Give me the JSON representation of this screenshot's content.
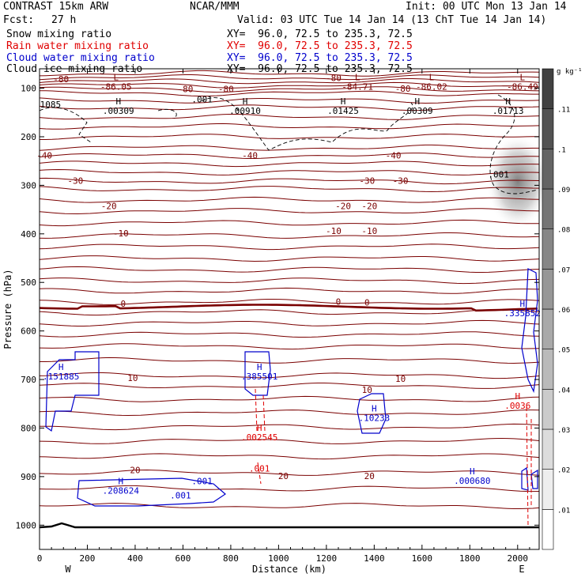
{
  "header": {
    "model": "CONTRAST 15km ARW",
    "org": "NCAR/MMM",
    "init": "Init: 00 UTC Mon 13 Jan 14",
    "fcst_label": "Fcst:",
    "fcst_value": "27 h",
    "valid": "Valid: 03 UTC Tue 14 Jan 14 (13 ChT Tue 14 Jan 14)"
  },
  "fields": [
    {
      "name": "Snow mixing ratio",
      "xy": "XY=  96.0, 72.5 to 235.3, 72.5",
      "color": "#000000"
    },
    {
      "name": "Rain water mixing ratio",
      "xy": "XY=  96.0, 72.5 to 235.3, 72.5",
      "color": "#e00000"
    },
    {
      "name": "Cloud water mixing ratio",
      "xy": "XY=  96.0, 72.5 to 235.3, 72.5",
      "color": "#0000cc"
    },
    {
      "name": "Cloud ice mixing ratio",
      "xy": "XY=  96.0, 72.5 to 235.3, 72.5",
      "color": "#000000"
    }
  ],
  "colors": {
    "temperature": "#7a0000",
    "cloud_water": "#0000cc",
    "rain_water": "#e00000",
    "snow": "#000000"
  },
  "chart_data": {
    "type": "heatmap",
    "xlabel": "Distance (km)",
    "ylabel": "Pressure (hPa)",
    "xlim": [
      0,
      2090
    ],
    "ylim": [
      1050,
      60
    ],
    "x_ticks": [
      "0",
      "200",
      "400",
      "600",
      "800",
      "1000",
      "1200",
      "1400",
      "1600",
      "1800",
      "2000"
    ],
    "x_tick_values": [
      0,
      200,
      400,
      600,
      800,
      1000,
      1200,
      1400,
      1600,
      1800,
      2000
    ],
    "y_ticks": [
      "100",
      "200",
      "300",
      "400",
      "500",
      "600",
      "700",
      "800",
      "900",
      "1000"
    ],
    "y_tick_values": [
      100,
      200,
      300,
      400,
      500,
      600,
      700,
      800,
      900,
      1000
    ],
    "endpoint_labels": {
      "left": "W",
      "right": "E"
    },
    "colorbar": {
      "unit": "g kg⁻¹",
      "levels": [
        "0",
        "0.01",
        "0.02",
        "0.03",
        "0.04",
        "0.05",
        "0.06",
        "0.07",
        "0.08",
        "0.09",
        "0.1",
        "0.11",
        "0.12"
      ],
      "labels": [
        ".01",
        ".02",
        ".03",
        ".04",
        ".05",
        ".06",
        ".07",
        ".08",
        ".09",
        ".1",
        ".11"
      ],
      "label_values": [
        0.01,
        0.02,
        0.03,
        0.04,
        0.05,
        0.06,
        0.07,
        0.08,
        0.09,
        0.1,
        0.11
      ]
    },
    "temperature_labels": [
      {
        "text": "-80",
        "x": 90,
        "p": 88
      },
      {
        "text": "-80",
        "x": 610,
        "p": 108
      },
      {
        "text": "-80",
        "x": 780,
        "p": 108
      },
      {
        "text": "-80",
        "x": 1230,
        "p": 85
      },
      {
        "text": "-80",
        "x": 1520,
        "p": 107
      },
      {
        "text": "-40",
        "x": 20,
        "p": 245
      },
      {
        "text": "-40",
        "x": 880,
        "p": 245
      },
      {
        "text": "-40",
        "x": 1480,
        "p": 245
      },
      {
        "text": "-30",
        "x": 150,
        "p": 297
      },
      {
        "text": "-30",
        "x": 1370,
        "p": 297
      },
      {
        "text": "-30",
        "x": 1510,
        "p": 297
      },
      {
        "text": "-20",
        "x": 290,
        "p": 349
      },
      {
        "text": "-20",
        "x": 1270,
        "p": 349
      },
      {
        "text": "-20",
        "x": 1380,
        "p": 349
      },
      {
        "text": "-10",
        "x": 340,
        "p": 405
      },
      {
        "text": "-10",
        "x": 1230,
        "p": 400
      },
      {
        "text": "-10",
        "x": 1380,
        "p": 400
      },
      {
        "text": "0",
        "x": 350,
        "p": 550
      },
      {
        "text": "0",
        "x": 1250,
        "p": 546
      },
      {
        "text": "0",
        "x": 1370,
        "p": 548
      },
      {
        "text": "10",
        "x": 390,
        "p": 703
      },
      {
        "text": "10",
        "x": 1370,
        "p": 728
      },
      {
        "text": "10",
        "x": 1510,
        "p": 705
      },
      {
        "text": "20",
        "x": 400,
        "p": 893
      },
      {
        "text": "20",
        "x": 1020,
        "p": 905
      },
      {
        "text": "20",
        "x": 1380,
        "p": 905
      }
    ],
    "extrema": [
      {
        "kind": "L",
        "value": "-86.05",
        "x": 320,
        "p": 103,
        "field": "temperature"
      },
      {
        "kind": "L",
        "value": "-84.71",
        "x": 1330,
        "p": 103,
        "field": "temperature"
      },
      {
        "kind": "L",
        "value": "-86.02",
        "x": 1640,
        "p": 103,
        "field": "temperature"
      },
      {
        "kind": "L",
        "value": "-86.49",
        "x": 2020,
        "p": 103,
        "field": "temperature"
      },
      {
        "kind": "H",
        "value": ".00309",
        "x": 330,
        "p": 153,
        "field": "snow"
      },
      {
        "kind": "H",
        "value": ".00910",
        "x": 860,
        "p": 153,
        "field": "snow"
      },
      {
        "kind": "H",
        "value": ".01425",
        "x": 1270,
        "p": 153,
        "field": "snow"
      },
      {
        "kind": "H",
        "value": ".00309",
        "x": 1580,
        "p": 153,
        "field": "snow"
      },
      {
        "kind": "H",
        "value": ".01713",
        "x": 1960,
        "p": 153,
        "field": "snow"
      },
      {
        "kind": "",
        "value": ".001",
        "x": 680,
        "p": 129,
        "field": "snow"
      },
      {
        "kind": "",
        "value": ".001",
        "x": 1920,
        "p": 284,
        "field": "snow"
      },
      {
        "kind": "H",
        "value": ".151885",
        "x": 90,
        "p": 700,
        "field": "cloud_water"
      },
      {
        "kind": "H",
        "value": ".385501",
        "x": 920,
        "p": 700,
        "field": "cloud_water"
      },
      {
        "kind": "H",
        "value": ".10233",
        "x": 1400,
        "p": 785,
        "field": "cloud_water"
      },
      {
        "kind": "H",
        "value": ".335852",
        "x": 2020,
        "p": 570,
        "field": "cloud_water"
      },
      {
        "kind": "H",
        "value": ".000680",
        "x": 1810,
        "p": 915,
        "field": "cloud_water"
      },
      {
        "kind": "H",
        "value": ".208624",
        "x": 340,
        "p": 935,
        "field": "cloud_water"
      },
      {
        "kind": "",
        "value": ".001",
        "x": 680,
        "p": 916,
        "field": "cloud_water"
      },
      {
        "kind": "",
        "value": ".001",
        "x": 590,
        "p": 945,
        "field": "cloud_water"
      },
      {
        "kind": "H",
        "value": ".002545",
        "x": 920,
        "p": 825,
        "field": "rain_water"
      },
      {
        "kind": "",
        "value": ".001",
        "x": 920,
        "p": 890,
        "field": "rain_water"
      },
      {
        "kind": "H",
        "value": ".0036",
        "x": 2000,
        "p": 760,
        "field": "rain_water"
      }
    ],
    "edge_labels": [
      {
        "text": "1085",
        "x": 2,
        "p": 140
      }
    ]
  }
}
